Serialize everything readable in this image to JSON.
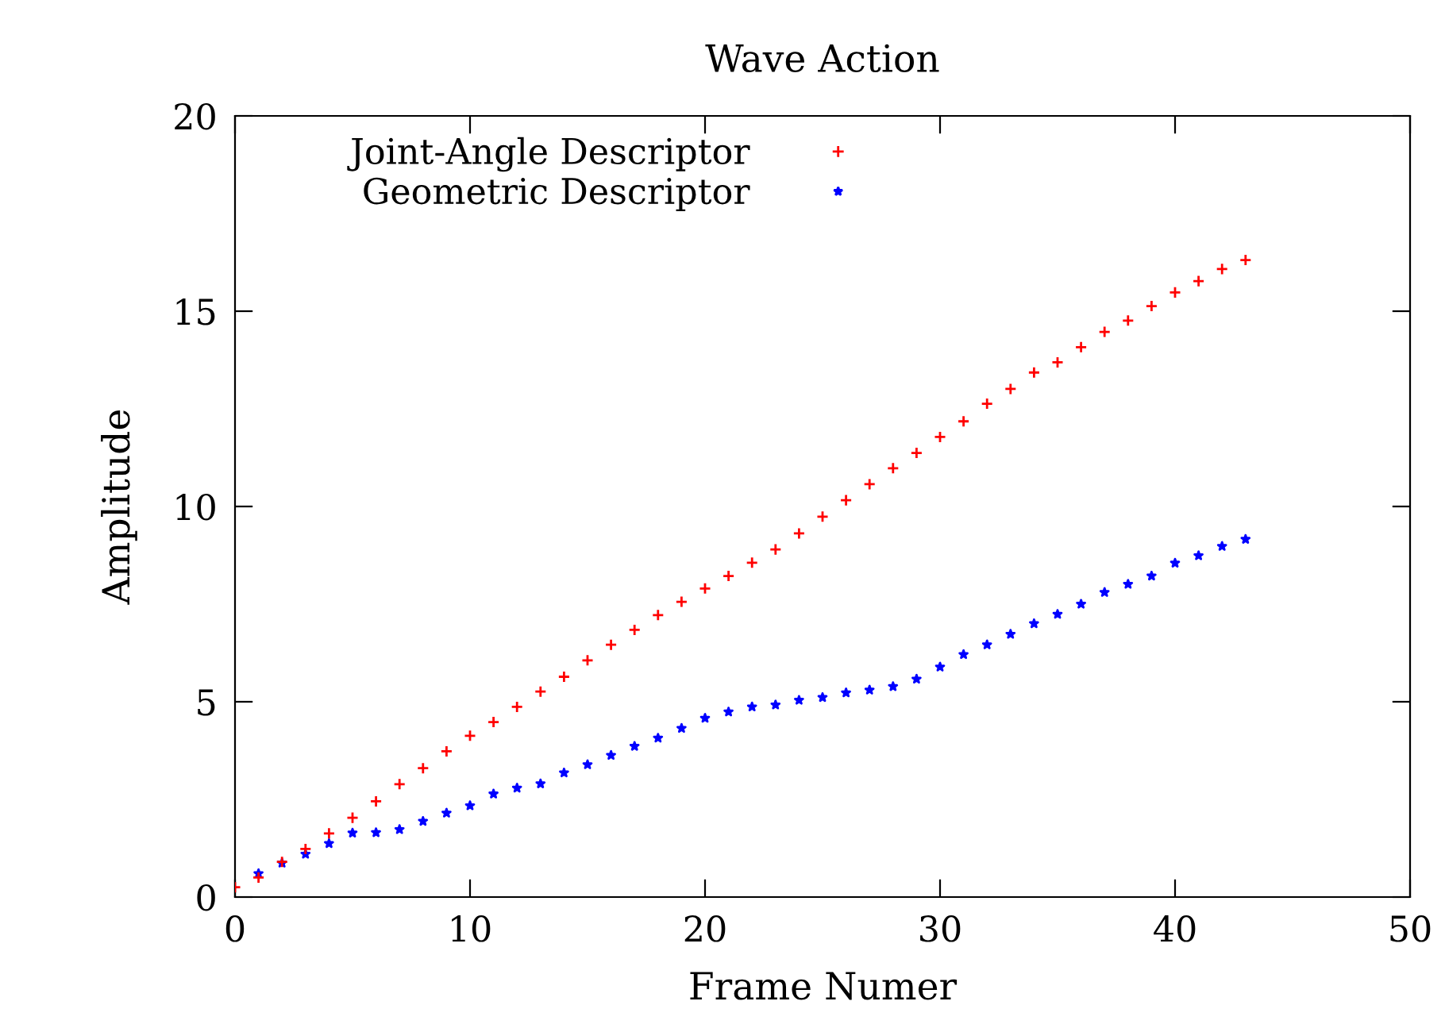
{
  "chart_data": {
    "type": "scatter",
    "title": "Wave Action",
    "xlabel": "Frame Numer",
    "ylabel": "Amplitude",
    "xlim": [
      0,
      50
    ],
    "xticks": [
      0,
      10,
      20,
      30,
      40,
      50
    ],
    "ylim": [
      0,
      20
    ],
    "yticks": [
      0,
      5,
      10,
      15,
      20
    ],
    "grid": false,
    "legend": "top left",
    "series": [
      {
        "name": "Joint-Angle Descriptor",
        "color": "#ff0000",
        "marker": "cross",
        "x": [
          0,
          1,
          2,
          3,
          4,
          5,
          6,
          7,
          8,
          9,
          10,
          11,
          12,
          13,
          14,
          15,
          16,
          17,
          18,
          19,
          20,
          21,
          22,
          23,
          24,
          25,
          26,
          27,
          28,
          29,
          30,
          31,
          32,
          33,
          34,
          35,
          36,
          37,
          38,
          39,
          40,
          41,
          42,
          43
        ],
        "values": [
          0.25,
          0.5,
          0.9,
          1.23,
          1.63,
          2.03,
          2.45,
          2.89,
          3.3,
          3.73,
          4.13,
          4.48,
          4.87,
          5.26,
          5.64,
          6.06,
          6.46,
          6.84,
          7.22,
          7.56,
          7.9,
          8.22,
          8.56,
          8.9,
          9.31,
          9.74,
          10.16,
          10.57,
          10.98,
          11.37,
          11.78,
          12.18,
          12.63,
          13.01,
          13.43,
          13.69,
          14.08,
          14.47,
          14.76,
          15.13,
          15.48,
          15.77,
          16.08,
          16.31
        ]
      },
      {
        "name": "Geometric Descriptor",
        "color": "#0000ff",
        "marker": "star",
        "x": [
          1,
          2,
          3,
          4,
          5,
          6,
          7,
          8,
          9,
          10,
          11,
          12,
          13,
          14,
          15,
          16,
          17,
          18,
          19,
          20,
          21,
          22,
          23,
          24,
          25,
          26,
          27,
          28,
          29,
          30,
          31,
          32,
          33,
          34,
          35,
          36,
          37,
          38,
          39,
          40,
          41,
          42,
          43
        ],
        "values": [
          0.6,
          0.87,
          1.1,
          1.37,
          1.64,
          1.65,
          1.73,
          1.94,
          2.15,
          2.34,
          2.64,
          2.79,
          2.9,
          3.18,
          3.39,
          3.63,
          3.86,
          4.07,
          4.32,
          4.58,
          4.74,
          4.87,
          4.92,
          5.04,
          5.11,
          5.23,
          5.3,
          5.39,
          5.58,
          5.89,
          6.21,
          6.46,
          6.73,
          7.0,
          7.24,
          7.5,
          7.8,
          8.01,
          8.22,
          8.55,
          8.74,
          8.98,
          9.16
        ]
      }
    ]
  }
}
